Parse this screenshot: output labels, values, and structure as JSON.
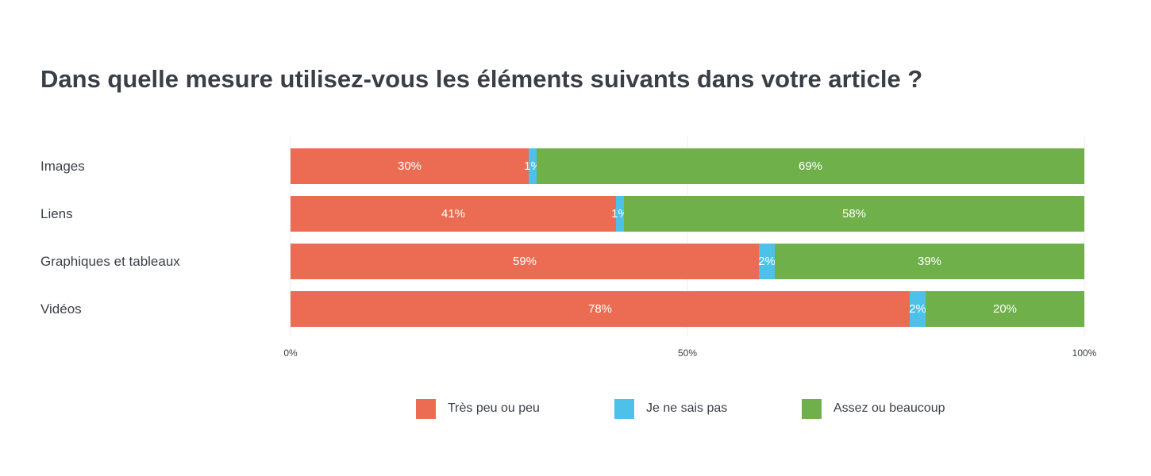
{
  "chart_data": {
    "type": "bar",
    "orientation": "horizontal",
    "stacked": true,
    "title": "Dans quelle mesure utilisez-vous les éléments suivants dans votre article ?",
    "categories": [
      "Images",
      "Liens",
      "Graphiques et tableaux",
      "Vidéos"
    ],
    "series": [
      {
        "name": "Très peu ou peu",
        "color": "#ec6c53",
        "values": [
          30,
          41,
          59,
          78
        ]
      },
      {
        "name": "Je ne sais pas",
        "color": "#4ec1ea",
        "values": [
          1,
          1,
          2,
          2
        ]
      },
      {
        "name": "Assez ou beaucoup",
        "color": "#6fb04a",
        "values": [
          69,
          58,
          39,
          20
        ]
      }
    ],
    "value_suffix": "%",
    "xlim": [
      0,
      100
    ],
    "xticks": [
      "0%",
      "50%",
      "100%"
    ],
    "grid": true,
    "legend_position": "bottom"
  }
}
